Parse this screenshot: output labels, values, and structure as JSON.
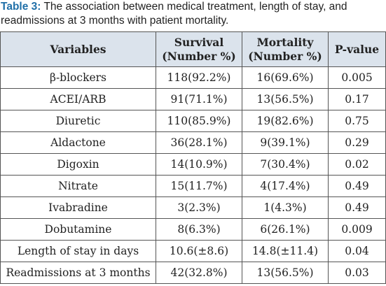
{
  "caption": {
    "label": "Table 3:",
    "text": " The association between medical treatment, length of stay, and readmissions at 3 months with patient mortality."
  },
  "table": {
    "headers": [
      {
        "line1": "Variables",
        "line2": ""
      },
      {
        "line1": "Survival",
        "line2": "(Number %)"
      },
      {
        "line1": "Mortality",
        "line2": "(Number %)"
      },
      {
        "line1": "P-value",
        "line2": ""
      }
    ],
    "rows": [
      [
        "β-blockers",
        "118(92.2%)",
        "16(69.6%)",
        "0.005"
      ],
      [
        "ACEI/ARB",
        "91(71.1%)",
        "13(56.5%)",
        "0.17"
      ],
      [
        "Diuretic",
        "110(85.9%)",
        "19(82.6%)",
        "0.75"
      ],
      [
        "Aldactone",
        "36(28.1%)",
        "9(39.1%)",
        "0.29"
      ],
      [
        "Digoxin",
        "14(10.9%)",
        "7(30.4%)",
        "0.02"
      ],
      [
        "Nitrate",
        "15(11.7%)",
        "4(17.4%)",
        "0.49"
      ],
      [
        "Ivabradine",
        "3(2.3%)",
        "1(4.3%)",
        "0.49"
      ],
      [
        "Dobutamine",
        "8(6.3%)",
        "6(26.1%)",
        "0.009"
      ],
      [
        "Length of stay in days",
        "10.6(±8.6)",
        "14.8(±11.4)",
        "0.04"
      ],
      [
        "Readmissions at 3 months",
        "42(32.8%)",
        "13(56.5%)",
        "0.03"
      ]
    ]
  },
  "colors": {
    "caption_label": "#1f6fa8",
    "header_background": "#dbe3ec",
    "border": "#555555",
    "text": "#222222"
  }
}
